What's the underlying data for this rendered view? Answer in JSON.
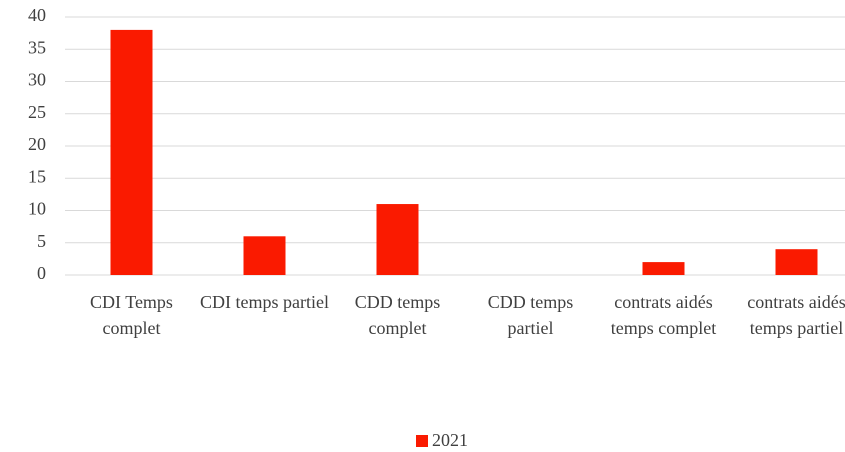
{
  "chart_data": {
    "type": "bar",
    "categories": [
      "CDI Temps complet",
      "CDI temps partiel",
      "CDD temps complet",
      "CDD temps partiel",
      "contrats aidés temps complet",
      "contrats aidés temps partiel"
    ],
    "series": [
      {
        "name": "2021",
        "color": "#fa1a00",
        "values": [
          38,
          6,
          11,
          0,
          2,
          4
        ]
      }
    ],
    "ylim": [
      0,
      40
    ],
    "yticks": [
      0,
      5,
      10,
      15,
      20,
      25,
      30,
      35,
      40
    ],
    "grid": true,
    "legend": "bottom"
  }
}
